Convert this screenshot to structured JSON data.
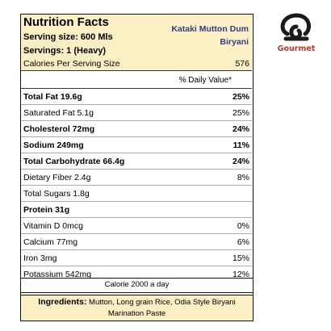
{
  "header": {
    "title": "Nutrition Facts",
    "serving_size": "Serving size: 600 Mls",
    "servings": "Servings: 1 (Heavy)",
    "product_name": "Kataki Mutton Dum Biryani"
  },
  "calories": {
    "label": "Calories Per Serving Size",
    "value": "576"
  },
  "daily_value_header": "% Daily Value*",
  "nutrients": [
    {
      "label": "Total Fat 19.6g",
      "value": "25%",
      "bold": true
    },
    {
      "label": "Saturated Fat 5.1g",
      "value": "25%",
      "bold": false
    },
    {
      "label": "Cholesterol 72mg",
      "value": "24%",
      "bold": true
    },
    {
      "label": "Sodium 249mg",
      "value": "11%",
      "bold": true
    },
    {
      "label": "Total Carbohydrate 66.4g",
      "value": "24%",
      "bold": true
    },
    {
      "label": "Dietary Fiber 2.4g",
      "value": "8%",
      "bold": false
    },
    {
      "label": "Total Sugars 1.8g",
      "value": "",
      "bold": false
    },
    {
      "label": "Protein 31g",
      "value": "",
      "bold": true
    },
    {
      "label": "Vitamin D 0mcg",
      "value": "0%",
      "bold": false
    },
    {
      "label": "Calcium 77mg",
      "value": "6%",
      "bold": false
    },
    {
      "label": "Iron 3mg",
      "value": "15%",
      "bold": false
    },
    {
      "label": "Potassium 542mg",
      "value": "12%",
      "bold": false
    }
  ],
  "calorie_note": "Calorie 2000 a day",
  "ingredients": {
    "label": "Ingredients:",
    "text": "Mutton, Long grain Rice, Odia Style Biryani Marination Paste"
  },
  "logo": {
    "text": "Gourmet",
    "icon": "gourmet-logo-icon",
    "color": "#c0392b"
  },
  "colors": {
    "header_bg": "#fdefc4",
    "product_name": "#2f3d8c"
  }
}
